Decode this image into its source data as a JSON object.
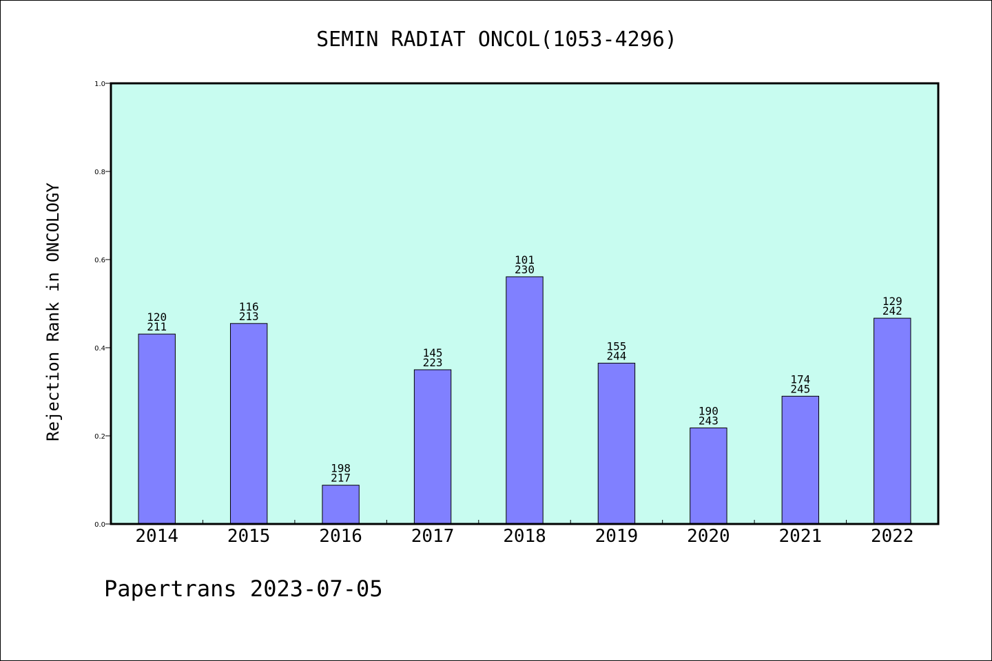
{
  "chart_data": {
    "type": "bar",
    "title": "SEMIN RADIAT ONCOL(1053-4296)",
    "ylabel": "Rejection Rank in ONCOLOGY",
    "xlabel": "",
    "footer": "Papertrans 2023-07-05",
    "categories": [
      "2014",
      "2015",
      "2016",
      "2017",
      "2018",
      "2019",
      "2020",
      "2021",
      "2022"
    ],
    "values": [
      0.431,
      0.455,
      0.088,
      0.35,
      0.561,
      0.365,
      0.218,
      0.29,
      0.467
    ],
    "labels": [
      [
        "120",
        "211"
      ],
      [
        "116",
        "213"
      ],
      [
        "198",
        "217"
      ],
      [
        "145",
        "223"
      ],
      [
        "101",
        "230"
      ],
      [
        "155",
        "244"
      ],
      [
        "190",
        "243"
      ],
      [
        "174",
        "245"
      ],
      [
        "129",
        "242"
      ]
    ],
    "ylim": [
      0,
      1.0
    ],
    "yticks": [
      "0.0",
      "0.2",
      "0.4",
      "0.6",
      "0.8",
      "1.0"
    ],
    "grid": false,
    "legend": "none",
    "colors": {
      "plot_background": "#c8fcf0",
      "bar_fill": "#8080ff",
      "bar_stroke": "#000000"
    }
  }
}
